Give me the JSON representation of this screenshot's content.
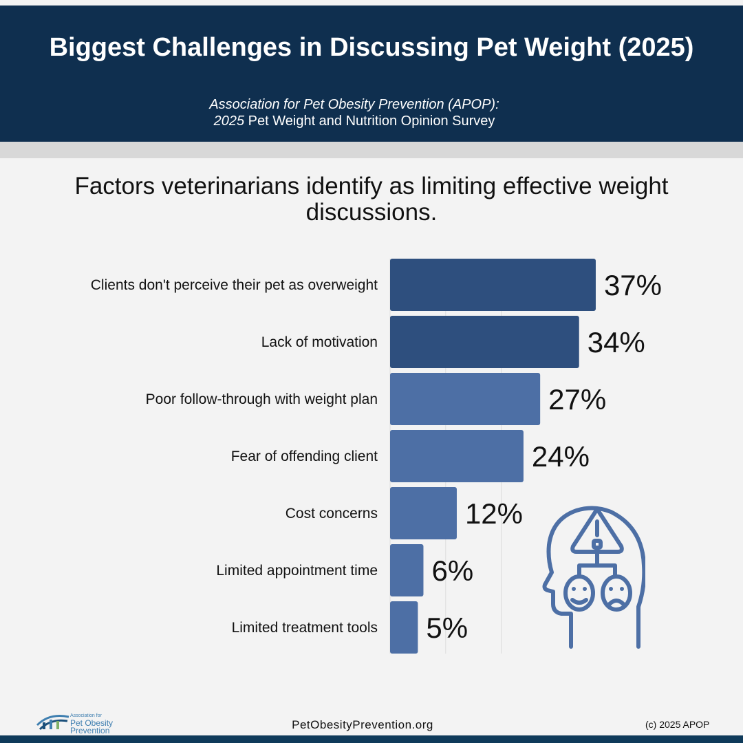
{
  "header": {
    "title": "Biggest Challenges in Discussing Pet Weight (2025)",
    "source_line1": "Association for Pet Obesity Prevention (APOP):",
    "source_year": "2025",
    "source_line2_rest": " Pet Weight and Nutrition Opinion Survey"
  },
  "subtitle": "Factors veterinarians identify as limiting effective weight discussions.",
  "chart_data": {
    "type": "bar",
    "orientation": "horizontal",
    "categories": [
      "Clients don't perceive their pet as overweight",
      "Lack of motivation",
      "Poor follow-through with weight plan",
      "Fear of offending client",
      "Cost concerns",
      "Limited appointment time",
      "Limited treatment tools"
    ],
    "values": [
      37,
      34,
      27,
      24,
      12,
      6,
      5
    ],
    "value_labels": [
      "37%",
      "34%",
      "27%",
      "24%",
      "12%",
      "6%",
      "5%"
    ],
    "bar_colors": [
      "#2e4f7e",
      "#2e4f7e",
      "#4d6fa5",
      "#4d6fa5",
      "#4d6fa5",
      "#4d6fa5",
      "#4d6fa5"
    ],
    "xlim": [
      0,
      40
    ],
    "grid": true,
    "legend": "none"
  },
  "decoration": {
    "icon": "head-warning-emotions-icon",
    "icon_color": "#4d6fa5"
  },
  "footer": {
    "logo_line1": "Association for",
    "logo_line2": "Pet Obesity",
    "logo_line3": "Prevention",
    "website": "PetObesityPrevention.org",
    "copyright": "(c) 2025 APOP"
  }
}
